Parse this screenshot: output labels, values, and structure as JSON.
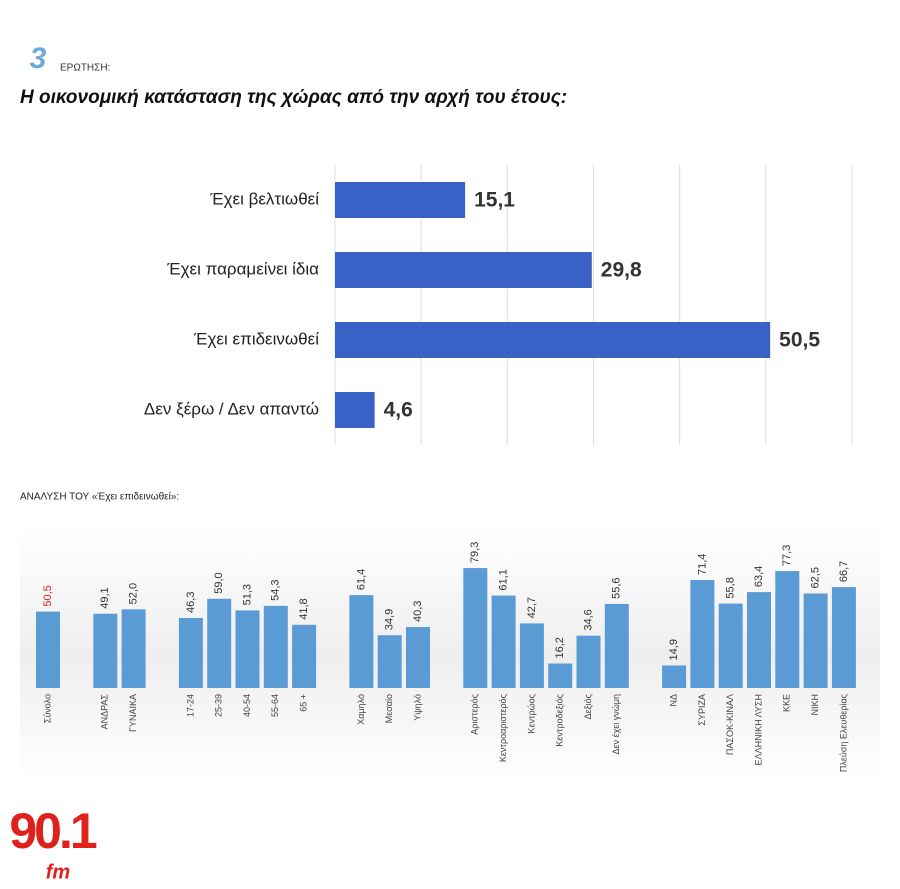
{
  "header": {
    "number": "3",
    "label": "ΕΡΩΤΗΣΗ:",
    "question": "Η οικονομική κατάσταση της χώρας από την αρχή του έτους:"
  },
  "logo": {
    "number": "90.1",
    "suffix": "fm"
  },
  "chart_data": [
    {
      "type": "hbar",
      "categories": [
        "Έχει βελτιωθεί",
        "Έχει παραμείνει ίδια",
        "Έχει επιδεινωθεί",
        "Δεν ξέρω / Δεν απαντώ"
      ],
      "values": [
        15.1,
        29.8,
        50.5,
        4.6
      ],
      "value_labels": [
        "15,1",
        "29,8",
        "50,5",
        "4,6"
      ],
      "color": "#3a62c6",
      "xlim": [
        0,
        60
      ],
      "xticks": [
        0,
        10,
        20,
        30,
        40,
        50,
        60
      ],
      "grid": true
    },
    {
      "type": "grouped-bar",
      "title": "ΑΝΑΛΥΣΗ ΤΟΥ «Έχει επιδεινωθεί»:",
      "color": "#5b9bd5",
      "ylim": [
        0,
        80
      ],
      "groups": [
        {
          "label_color": "#e02020",
          "categories": [
            "Σύνολο"
          ],
          "values": [
            50.5
          ],
          "value_labels": [
            "50,5"
          ]
        },
        {
          "label_color": "#333333",
          "categories": [
            "ΑΝΔΡΑΣ",
            "ΓΥΝΑΙΚΑ"
          ],
          "values": [
            49.1,
            52.0
          ],
          "value_labels": [
            "49,1",
            "52,0"
          ]
        },
        {
          "label_color": "#333333",
          "categories": [
            "17-24",
            "25-39",
            "40-54",
            "55-64",
            "65 +"
          ],
          "values": [
            46.3,
            59.0,
            51.3,
            54.3,
            41.8
          ],
          "value_labels": [
            "46,3",
            "59,0",
            "51,3",
            "54,3",
            "41,8"
          ]
        },
        {
          "label_color": "#333333",
          "categories": [
            "Χαμηλό",
            "Μεσαίο",
            "Υψηλό"
          ],
          "values": [
            61.4,
            34.9,
            40.3
          ],
          "value_labels": [
            "61,4",
            "34,9",
            "40,3"
          ]
        },
        {
          "label_color": "#333333",
          "categories": [
            "Αριστερός",
            "Κεντροαριστερός",
            "Κεντρώος",
            "Κεντροδεξιός",
            "Δεξιός",
            "Δεν έχει γνώμη"
          ],
          "values": [
            79.3,
            61.1,
            42.7,
            16.2,
            34.6,
            55.6
          ],
          "value_labels": [
            "79,3",
            "61,1",
            "42,7",
            "16,2",
            "34,6",
            "55,6"
          ]
        },
        {
          "label_color": "#333333",
          "categories": [
            "ΝΔ",
            "ΣΥΡΙΖΑ",
            "ΠΑΣΟΚ-ΚΙΝΑΛ",
            "ΕΛΛΗΝΙΚΗ ΛΥΣΗ",
            "ΚΚΕ",
            "ΝΙΚΗ",
            "Πλεύση Ελευθερίας"
          ],
          "values": [
            14.9,
            71.4,
            55.8,
            63.4,
            77.3,
            62.5,
            66.7
          ],
          "value_labels": [
            "14,9",
            "71,4",
            "55,8",
            "63,4",
            "77,3",
            "62,5",
            "66,7"
          ]
        }
      ]
    }
  ]
}
